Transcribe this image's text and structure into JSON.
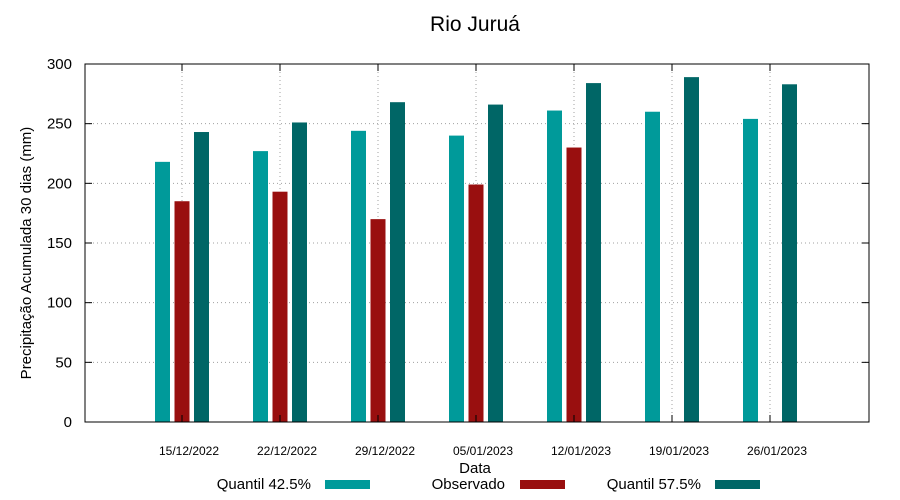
{
  "chart_data": {
    "type": "bar",
    "title": "Rio Juruá",
    "xlabel": "Data",
    "ylabel": "Precipitação Acumulada 30 dias (mm)",
    "ylim": [
      0,
      300
    ],
    "yticks": [
      0,
      50,
      100,
      150,
      200,
      250,
      300
    ],
    "grid": true,
    "legend_placement": "bottom",
    "categories": [
      "15/12/2022",
      "22/12/2022",
      "29/12/2022",
      "05/01/2023",
      "12/01/2023",
      "19/01/2023",
      "26/01/2023"
    ],
    "series": [
      {
        "name": "Quantil 42.5%",
        "color": "#009a9a",
        "values": [
          218,
          227,
          244,
          240,
          261,
          260,
          254
        ]
      },
      {
        "name": "Observado",
        "color": "#990f0f",
        "values": [
          185,
          193,
          170,
          199,
          230,
          null,
          null
        ]
      },
      {
        "name": "Quantil 57.5%",
        "color": "#006666",
        "values": [
          243,
          251,
          268,
          266,
          284,
          289,
          283
        ]
      }
    ]
  }
}
